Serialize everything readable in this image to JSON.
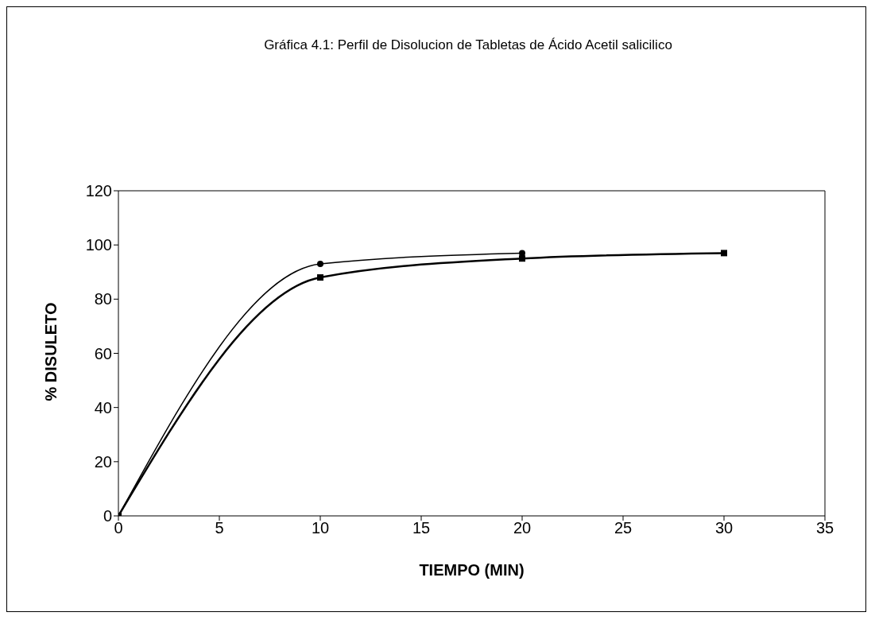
{
  "chart_data": {
    "type": "line",
    "title": "Gráfica 4.1: Perfil de Disolucion de Tabletas de Ácido Acetil salicilico",
    "xlabel": "TIEMPO (MIN)",
    "ylabel": "% DISULETO",
    "x": [
      0,
      10,
      20,
      30
    ],
    "series": [
      {
        "color": "#000000",
        "values": [
          0,
          88,
          95,
          97
        ],
        "marker": "square"
      },
      {
        "color": "#000000",
        "values": [
          0,
          93,
          97,
          null
        ],
        "marker": "circle"
      }
    ],
    "xlim": [
      0,
      35
    ],
    "xticks": [
      0,
      5,
      10,
      15,
      20,
      25,
      30,
      35
    ],
    "ylim": [
      0,
      120
    ],
    "yticks": [
      0,
      20,
      40,
      60,
      80,
      100,
      120
    ],
    "grid": false,
    "legend": false
  }
}
